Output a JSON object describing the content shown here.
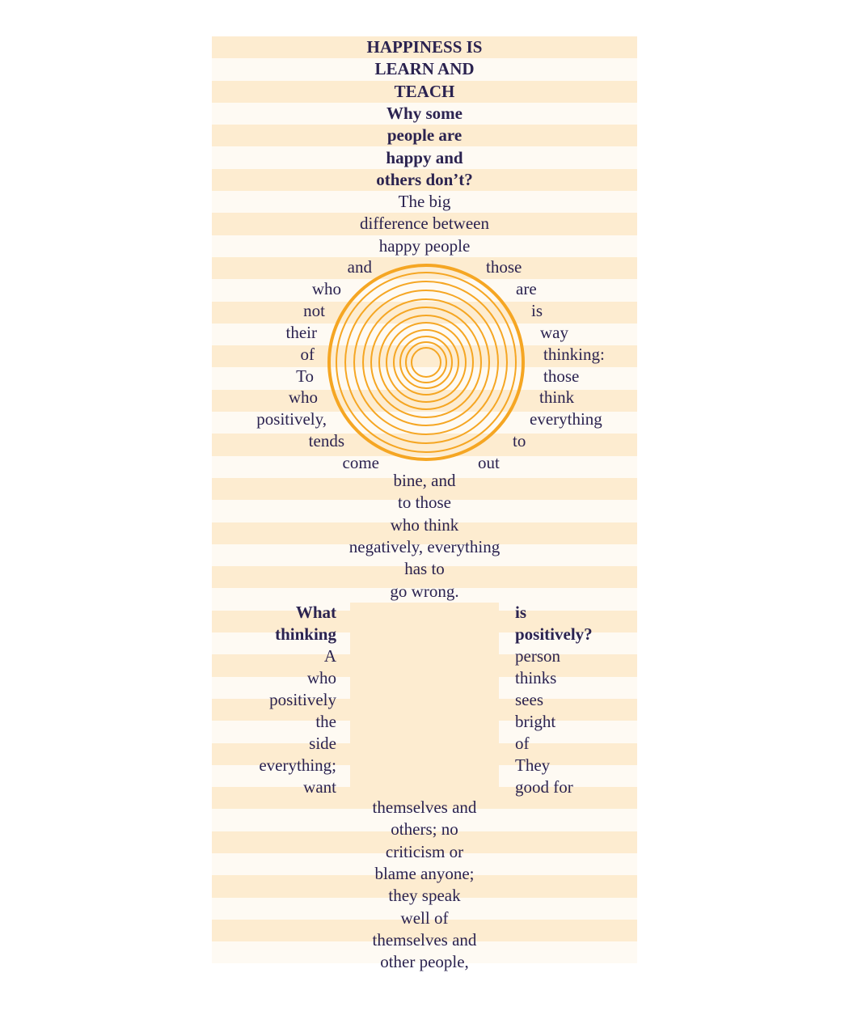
{
  "colors": {
    "stripe_dark": "#fdecd0",
    "stripe_light": "#fefaf3",
    "text": "#2b2350",
    "spiral": "#f5a623"
  },
  "title_lines": [
    "HAPPINESS IS",
    "LEARN AND",
    "TEACH"
  ],
  "subtitle_lines": [
    "Why some",
    "people are",
    "happy and",
    "others don’t?"
  ],
  "para1_lines": [
    "The big",
    "difference between",
    "happy people"
  ],
  "ring_left": [
    "and",
    "who",
    "not",
    "their",
    "of",
    "To",
    "who",
    "positively,",
    "tends",
    "come"
  ],
  "ring_right": [
    "those",
    "are",
    "is",
    "way",
    "thinking:",
    "those",
    "think",
    "everything",
    "to",
    "out"
  ],
  "para2_lines": [
    "bine, and",
    "to those",
    "who think",
    "negatively, everything",
    "has to",
    "go wrong."
  ],
  "split_left": [
    "What",
    "thinking",
    "A",
    "who",
    "positively",
    "the",
    "side",
    "everything;",
    "want"
  ],
  "split_right": [
    "is",
    "positively?",
    "person",
    "thinks",
    "sees",
    "bright",
    "of",
    "They",
    "good for"
  ],
  "para3_lines": [
    "themselves and",
    "others; no",
    "criticism or",
    "blame anyone;",
    "they speak",
    "well of",
    "themselves and",
    "other people,"
  ]
}
